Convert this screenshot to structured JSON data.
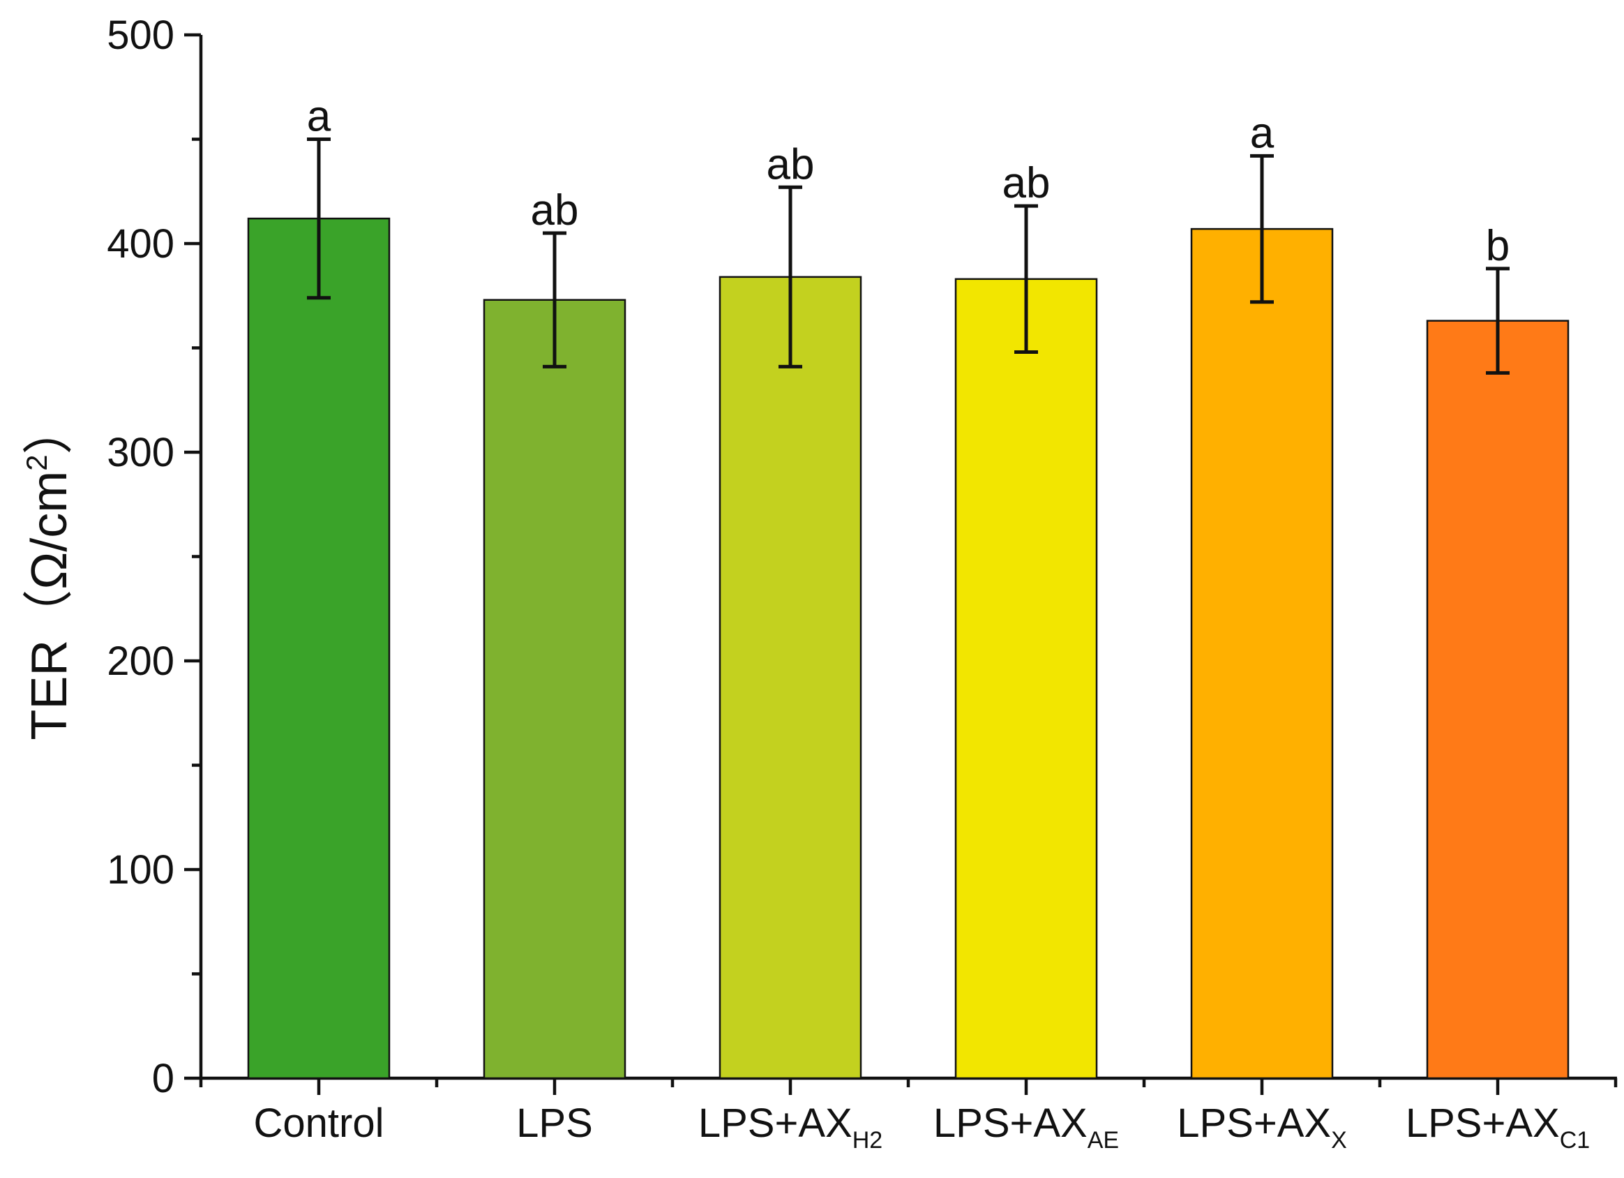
{
  "chart_data": {
    "type": "bar",
    "title": "",
    "xlabel": "",
    "ylabel": {
      "main": "TER",
      "unit_open": "（Ω/cm",
      "unit_sup": "2",
      "unit_close": "）"
    },
    "ylim": [
      0,
      500
    ],
    "yticks": [
      0,
      100,
      200,
      300,
      400,
      500
    ],
    "yticks_minor": [
      50,
      150,
      250,
      350,
      450
    ],
    "categories": [
      {
        "base": "Control",
        "sub": ""
      },
      {
        "base": "LPS",
        "sub": ""
      },
      {
        "base": "LPS+AX",
        "sub": "H2"
      },
      {
        "base": "LPS+AX",
        "sub": "AE"
      },
      {
        "base": "LPS+AX",
        "sub": "X"
      },
      {
        "base": "LPS+AX",
        "sub": "C1"
      }
    ],
    "values": [
      412,
      373,
      384,
      383,
      407,
      363
    ],
    "errors": [
      38,
      32,
      43,
      35,
      35,
      25
    ],
    "significance": [
      "a",
      "ab",
      "ab",
      "ab",
      "a",
      "b"
    ],
    "colors": [
      "#3aa329",
      "#7fb22f",
      "#c3d11f",
      "#f2e600",
      "#ffb000",
      "#ff7a17"
    ],
    "grid": false,
    "legend": "none"
  }
}
